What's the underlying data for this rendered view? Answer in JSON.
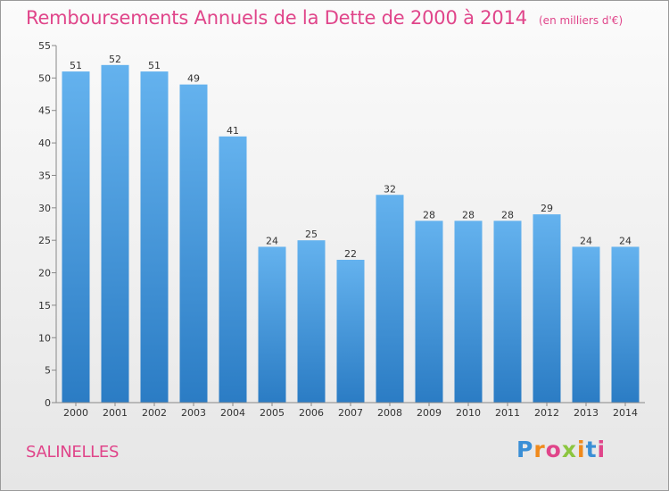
{
  "chart_data": {
    "type": "bar",
    "title": "Remboursements Annuels de la Dette de 2000 à 2014",
    "subtitle": "(en milliers d'€)",
    "categories": [
      "2000",
      "2001",
      "2002",
      "2003",
      "2004",
      "2005",
      "2006",
      "2007",
      "2008",
      "2009",
      "2010",
      "2011",
      "2012",
      "2013",
      "2014"
    ],
    "values": [
      51,
      52,
      51,
      49,
      41,
      24,
      25,
      22,
      32,
      28,
      28,
      28,
      29,
      24,
      24
    ],
    "ylim": [
      0,
      55
    ],
    "yticks": [
      0,
      5,
      10,
      15,
      20,
      25,
      30,
      35,
      40,
      45,
      50,
      55
    ],
    "grid": false,
    "bar_color": "#3d8fd8"
  },
  "footer": {
    "place": "SALINELLES",
    "logo": "Proxiti"
  }
}
